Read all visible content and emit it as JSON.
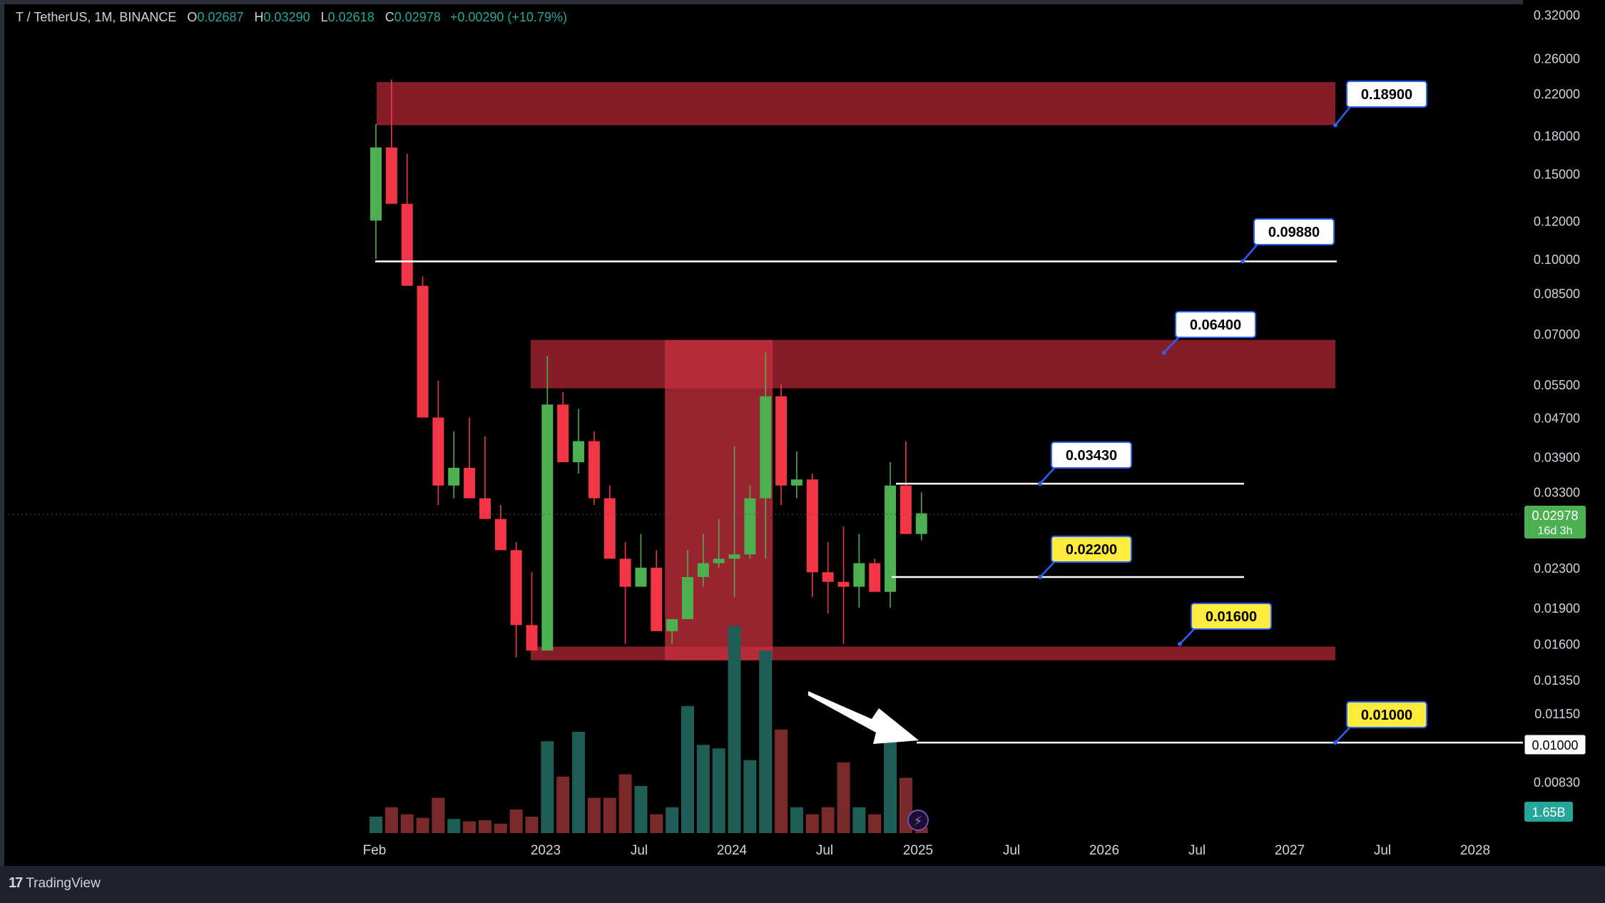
{
  "legend": {
    "symbol": "T / TetherUS, 1M, BINANCE",
    "open_label": "O",
    "open": "0.02687",
    "high_label": "H",
    "high": "0.03290",
    "low_label": "L",
    "low": "0.02618",
    "close_label": "C",
    "close": "0.02978",
    "change": "+0.00290 (+10.79%)"
  },
  "footer": {
    "brand": "TradingView"
  },
  "colors": {
    "up": "#4caf50",
    "down": "#f23645",
    "zone": "#8b1f2a",
    "vol_up": "#1f5e57",
    "vol_down": "#7a2a2a",
    "background": "#000000",
    "price_tag": "#26a69a"
  },
  "chart_data": {
    "type": "candlestick",
    "y_scale": "log",
    "y_ticks": [
      "0.32000",
      "0.26000",
      "0.22000",
      "0.18000",
      "0.15000",
      "0.12000",
      "0.10000",
      "0.08500",
      "0.07000",
      "0.05500",
      "0.04700",
      "0.03900",
      "0.03300",
      "0.02300",
      "0.01900",
      "0.01600",
      "0.01350",
      "0.01150",
      "0.00830"
    ],
    "x_ticks": [
      "Feb",
      "2023",
      "Jul",
      "2024",
      "Jul",
      "2025",
      "Jul",
      "2026",
      "Jul",
      "2027",
      "Jul",
      "2028"
    ],
    "candles": [
      {
        "o": 0.12,
        "h": 0.19,
        "l": 0.1,
        "c": 0.17
      },
      {
        "o": 0.17,
        "h": 0.235,
        "l": 0.13,
        "c": 0.13
      },
      {
        "o": 0.13,
        "h": 0.165,
        "l": 0.088,
        "c": 0.088
      },
      {
        "o": 0.088,
        "h": 0.092,
        "l": 0.047,
        "c": 0.047
      },
      {
        "o": 0.047,
        "h": 0.056,
        "l": 0.031,
        "c": 0.034
      },
      {
        "o": 0.034,
        "h": 0.044,
        "l": 0.032,
        "c": 0.037
      },
      {
        "o": 0.037,
        "h": 0.047,
        "l": 0.032,
        "c": 0.032
      },
      {
        "o": 0.032,
        "h": 0.043,
        "l": 0.029,
        "c": 0.029
      },
      {
        "o": 0.029,
        "h": 0.031,
        "l": 0.025,
        "c": 0.025
      },
      {
        "o": 0.025,
        "h": 0.026,
        "l": 0.015,
        "c": 0.0175
      },
      {
        "o": 0.0175,
        "h": 0.0225,
        "l": 0.0155,
        "c": 0.0155
      },
      {
        "o": 0.0155,
        "h": 0.063,
        "l": 0.0155,
        "c": 0.05
      },
      {
        "o": 0.05,
        "h": 0.053,
        "l": 0.038,
        "c": 0.038
      },
      {
        "o": 0.038,
        "h": 0.049,
        "l": 0.036,
        "c": 0.042
      },
      {
        "o": 0.042,
        "h": 0.044,
        "l": 0.031,
        "c": 0.032
      },
      {
        "o": 0.032,
        "h": 0.034,
        "l": 0.024,
        "c": 0.024
      },
      {
        "o": 0.024,
        "h": 0.026,
        "l": 0.016,
        "c": 0.021
      },
      {
        "o": 0.021,
        "h": 0.027,
        "l": 0.021,
        "c": 0.023
      },
      {
        "o": 0.023,
        "h": 0.025,
        "l": 0.017,
        "c": 0.017
      },
      {
        "o": 0.017,
        "h": 0.018,
        "l": 0.016,
        "c": 0.018
      },
      {
        "o": 0.018,
        "h": 0.025,
        "l": 0.018,
        "c": 0.022
      },
      {
        "o": 0.022,
        "h": 0.027,
        "l": 0.021,
        "c": 0.0235
      },
      {
        "o": 0.0235,
        "h": 0.029,
        "l": 0.023,
        "c": 0.024
      },
      {
        "o": 0.024,
        "h": 0.041,
        "l": 0.02,
        "c": 0.0245
      },
      {
        "o": 0.0245,
        "h": 0.034,
        "l": 0.024,
        "c": 0.032
      },
      {
        "o": 0.032,
        "h": 0.064,
        "l": 0.024,
        "c": 0.052
      },
      {
        "o": 0.052,
        "h": 0.055,
        "l": 0.031,
        "c": 0.034
      },
      {
        "o": 0.034,
        "h": 0.04,
        "l": 0.032,
        "c": 0.035
      },
      {
        "o": 0.035,
        "h": 0.036,
        "l": 0.02,
        "c": 0.0225
      },
      {
        "o": 0.0225,
        "h": 0.026,
        "l": 0.0185,
        "c": 0.0215
      },
      {
        "o": 0.0215,
        "h": 0.028,
        "l": 0.016,
        "c": 0.021
      },
      {
        "o": 0.021,
        "h": 0.027,
        "l": 0.019,
        "c": 0.0235
      },
      {
        "o": 0.0235,
        "h": 0.024,
        "l": 0.021,
        "c": 0.0205
      },
      {
        "o": 0.0205,
        "h": 0.038,
        "l": 0.019,
        "c": 0.034
      },
      {
        "o": 0.034,
        "h": 0.042,
        "l": 0.027,
        "c": 0.027
      },
      {
        "o": 0.027,
        "h": 0.0329,
        "l": 0.0262,
        "c": 0.0298
      }
    ],
    "volume": [
      {
        "v": 0.14,
        "up": true
      },
      {
        "v": 0.22,
        "up": false
      },
      {
        "v": 0.16,
        "up": false
      },
      {
        "v": 0.13,
        "up": false
      },
      {
        "v": 0.3,
        "up": false
      },
      {
        "v": 0.12,
        "up": true
      },
      {
        "v": 0.1,
        "up": false
      },
      {
        "v": 0.11,
        "up": false
      },
      {
        "v": 0.08,
        "up": false
      },
      {
        "v": 0.2,
        "up": false
      },
      {
        "v": 0.14,
        "up": false
      },
      {
        "v": 0.78,
        "up": true
      },
      {
        "v": 0.48,
        "up": false
      },
      {
        "v": 0.86,
        "up": true
      },
      {
        "v": 0.3,
        "up": false
      },
      {
        "v": 0.3,
        "up": false
      },
      {
        "v": 0.5,
        "up": false
      },
      {
        "v": 0.4,
        "up": true
      },
      {
        "v": 0.16,
        "up": false
      },
      {
        "v": 0.22,
        "up": true
      },
      {
        "v": 1.08,
        "up": true
      },
      {
        "v": 0.75,
        "up": true
      },
      {
        "v": 0.72,
        "up": true
      },
      {
        "v": 1.76,
        "up": true
      },
      {
        "v": 0.62,
        "up": true
      },
      {
        "v": 1.55,
        "up": true
      },
      {
        "v": 0.88,
        "up": false
      },
      {
        "v": 0.22,
        "up": true
      },
      {
        "v": 0.16,
        "up": false
      },
      {
        "v": 0.22,
        "up": false
      },
      {
        "v": 0.6,
        "up": false
      },
      {
        "v": 0.22,
        "up": true
      },
      {
        "v": 0.16,
        "up": false
      },
      {
        "v": 0.78,
        "up": true
      },
      {
        "v": 0.47,
        "up": false
      },
      {
        "v": 0.05,
        "up": false
      }
    ],
    "zones": [
      {
        "top": 0.232,
        "bottom": 0.189,
        "from": 0,
        "to": "end"
      },
      {
        "top": 0.068,
        "bottom": 0.054,
        "from": 10,
        "to": "end"
      },
      {
        "top": 0.0158,
        "bottom": 0.0148,
        "from": 10,
        "to": "end"
      },
      {
        "top": 0.068,
        "bottom": 0.0148,
        "from": 19,
        "to": 25,
        "vertical": true
      }
    ],
    "levels": [
      {
        "label": "0.18900",
        "price": 0.189,
        "style": "white",
        "line": false
      },
      {
        "label": "0.09880",
        "price": 0.0988,
        "style": "white",
        "line": true
      },
      {
        "label": "0.06400",
        "price": 0.064,
        "style": "white",
        "line": false
      },
      {
        "label": "0.03430",
        "price": 0.0343,
        "style": "white",
        "line": true
      },
      {
        "label": "0.02200",
        "price": 0.022,
        "style": "yellow",
        "line": true
      },
      {
        "label": "0.01600",
        "price": 0.016,
        "style": "yellow",
        "line": false
      },
      {
        "label": "0.01000",
        "price": 0.01,
        "style": "yellow",
        "line": true
      }
    ],
    "current_price": {
      "label": "0.02978",
      "sub": "16d 3h"
    },
    "axis_marker": "0.01000",
    "volume_tag": "1.65B"
  }
}
